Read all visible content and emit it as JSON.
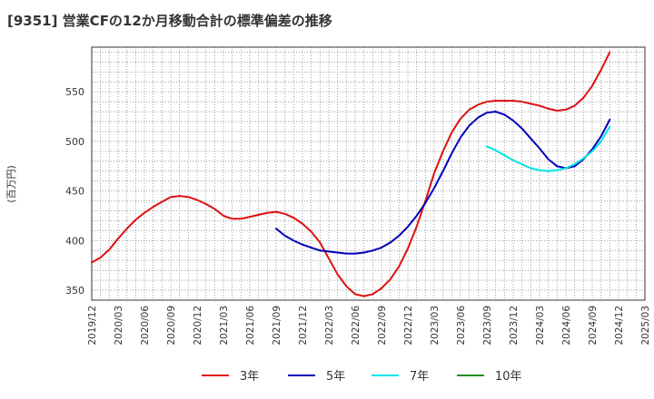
{
  "chart_data": {
    "type": "line",
    "title": "[9351]  営業CFの12か月移動合計の標準偏差の推移",
    "ylabel": "(百万円)",
    "xlabel": "",
    "ylim": [
      340,
      595
    ],
    "yticks": [
      350,
      400,
      450,
      500,
      550
    ],
    "x_ticks": [
      "2019/12",
      "2020/03",
      "2020/06",
      "2020/09",
      "2020/12",
      "2021/03",
      "2021/06",
      "2021/09",
      "2021/12",
      "2022/03",
      "2022/06",
      "2022/09",
      "2022/12",
      "2023/03",
      "2023/06",
      "2023/09",
      "2023/12",
      "2024/03",
      "2024/06",
      "2024/09",
      "2024/12",
      "2025/03"
    ],
    "grid": true,
    "legend_position": "bottom",
    "series": [
      {
        "name": "3年",
        "color": "#dd1111",
        "points": [
          [
            "2019/12",
            378
          ],
          [
            "2020/01",
            383
          ],
          [
            "2020/02",
            391
          ],
          [
            "2020/03",
            402
          ],
          [
            "2020/04",
            412
          ],
          [
            "2020/05",
            421
          ],
          [
            "2020/06",
            428
          ],
          [
            "2020/07",
            434
          ],
          [
            "2020/08",
            439
          ],
          [
            "2020/09",
            444
          ],
          [
            "2020/10",
            445
          ],
          [
            "2020/11",
            444
          ],
          [
            "2020/12",
            441
          ],
          [
            "2021/01",
            437
          ],
          [
            "2021/02",
            432
          ],
          [
            "2021/03",
            425
          ],
          [
            "2021/04",
            422
          ],
          [
            "2021/05",
            422
          ],
          [
            "2021/06",
            424
          ],
          [
            "2021/07",
            426
          ],
          [
            "2021/08",
            428
          ],
          [
            "2021/09",
            429
          ],
          [
            "2021/10",
            427
          ],
          [
            "2021/11",
            423
          ],
          [
            "2021/12",
            417
          ],
          [
            "2022/01",
            409
          ],
          [
            "2022/02",
            398
          ],
          [
            "2022/03",
            382
          ],
          [
            "2022/04",
            366
          ],
          [
            "2022/05",
            354
          ],
          [
            "2022/06",
            346
          ],
          [
            "2022/07",
            344
          ],
          [
            "2022/08",
            346
          ],
          [
            "2022/09",
            352
          ],
          [
            "2022/10",
            361
          ],
          [
            "2022/11",
            374
          ],
          [
            "2022/12",
            392
          ],
          [
            "2023/01",
            414
          ],
          [
            "2023/02",
            440
          ],
          [
            "2023/03",
            468
          ],
          [
            "2023/04",
            490
          ],
          [
            "2023/05",
            509
          ],
          [
            "2023/06",
            523
          ],
          [
            "2023/07",
            532
          ],
          [
            "2023/08",
            537
          ],
          [
            "2023/09",
            540
          ],
          [
            "2023/10",
            541
          ],
          [
            "2023/11",
            541
          ],
          [
            "2023/12",
            541
          ],
          [
            "2024/01",
            540
          ],
          [
            "2024/02",
            538
          ],
          [
            "2024/03",
            536
          ],
          [
            "2024/04",
            533
          ],
          [
            "2024/05",
            531
          ],
          [
            "2024/06",
            532
          ],
          [
            "2024/07",
            536
          ],
          [
            "2024/08",
            544
          ],
          [
            "2024/09",
            556
          ],
          [
            "2024/10",
            572
          ],
          [
            "2024/11",
            590
          ]
        ]
      },
      {
        "name": "5年",
        "color": "#0000bb",
        "points": [
          [
            "2021/09",
            412
          ],
          [
            "2021/10",
            405
          ],
          [
            "2021/11",
            400
          ],
          [
            "2021/12",
            396
          ],
          [
            "2022/01",
            393
          ],
          [
            "2022/02",
            390
          ],
          [
            "2022/03",
            389
          ],
          [
            "2022/04",
            388
          ],
          [
            "2022/05",
            387
          ],
          [
            "2022/06",
            387
          ],
          [
            "2022/07",
            388
          ],
          [
            "2022/08",
            390
          ],
          [
            "2022/09",
            393
          ],
          [
            "2022/10",
            398
          ],
          [
            "2022/11",
            405
          ],
          [
            "2022/12",
            414
          ],
          [
            "2023/01",
            425
          ],
          [
            "2023/02",
            438
          ],
          [
            "2023/03",
            453
          ],
          [
            "2023/04",
            470
          ],
          [
            "2023/05",
            488
          ],
          [
            "2023/06",
            504
          ],
          [
            "2023/07",
            516
          ],
          [
            "2023/08",
            524
          ],
          [
            "2023/09",
            529
          ],
          [
            "2023/10",
            530
          ],
          [
            "2023/11",
            527
          ],
          [
            "2023/12",
            521
          ],
          [
            "2024/01",
            513
          ],
          [
            "2024/02",
            503
          ],
          [
            "2024/03",
            493
          ],
          [
            "2024/04",
            482
          ],
          [
            "2024/05",
            475
          ],
          [
            "2024/06",
            473
          ],
          [
            "2024/07",
            475
          ],
          [
            "2024/08",
            482
          ],
          [
            "2024/09",
            492
          ],
          [
            "2024/10",
            505
          ],
          [
            "2024/11",
            522
          ]
        ]
      },
      {
        "name": "7年",
        "color": "#00e5e5",
        "points": [
          [
            "2023/09",
            495
          ],
          [
            "2023/10",
            491
          ],
          [
            "2023/11",
            486
          ],
          [
            "2023/12",
            481
          ],
          [
            "2024/01",
            477
          ],
          [
            "2024/02",
            473
          ],
          [
            "2024/03",
            471
          ],
          [
            "2024/04",
            470
          ],
          [
            "2024/05",
            471
          ],
          [
            "2024/06",
            473
          ],
          [
            "2024/07",
            477
          ],
          [
            "2024/08",
            483
          ],
          [
            "2024/09",
            490
          ],
          [
            "2024/10",
            500
          ],
          [
            "2024/11",
            515
          ]
        ]
      },
      {
        "name": "10年",
        "color": "#228b22",
        "points": []
      }
    ]
  }
}
